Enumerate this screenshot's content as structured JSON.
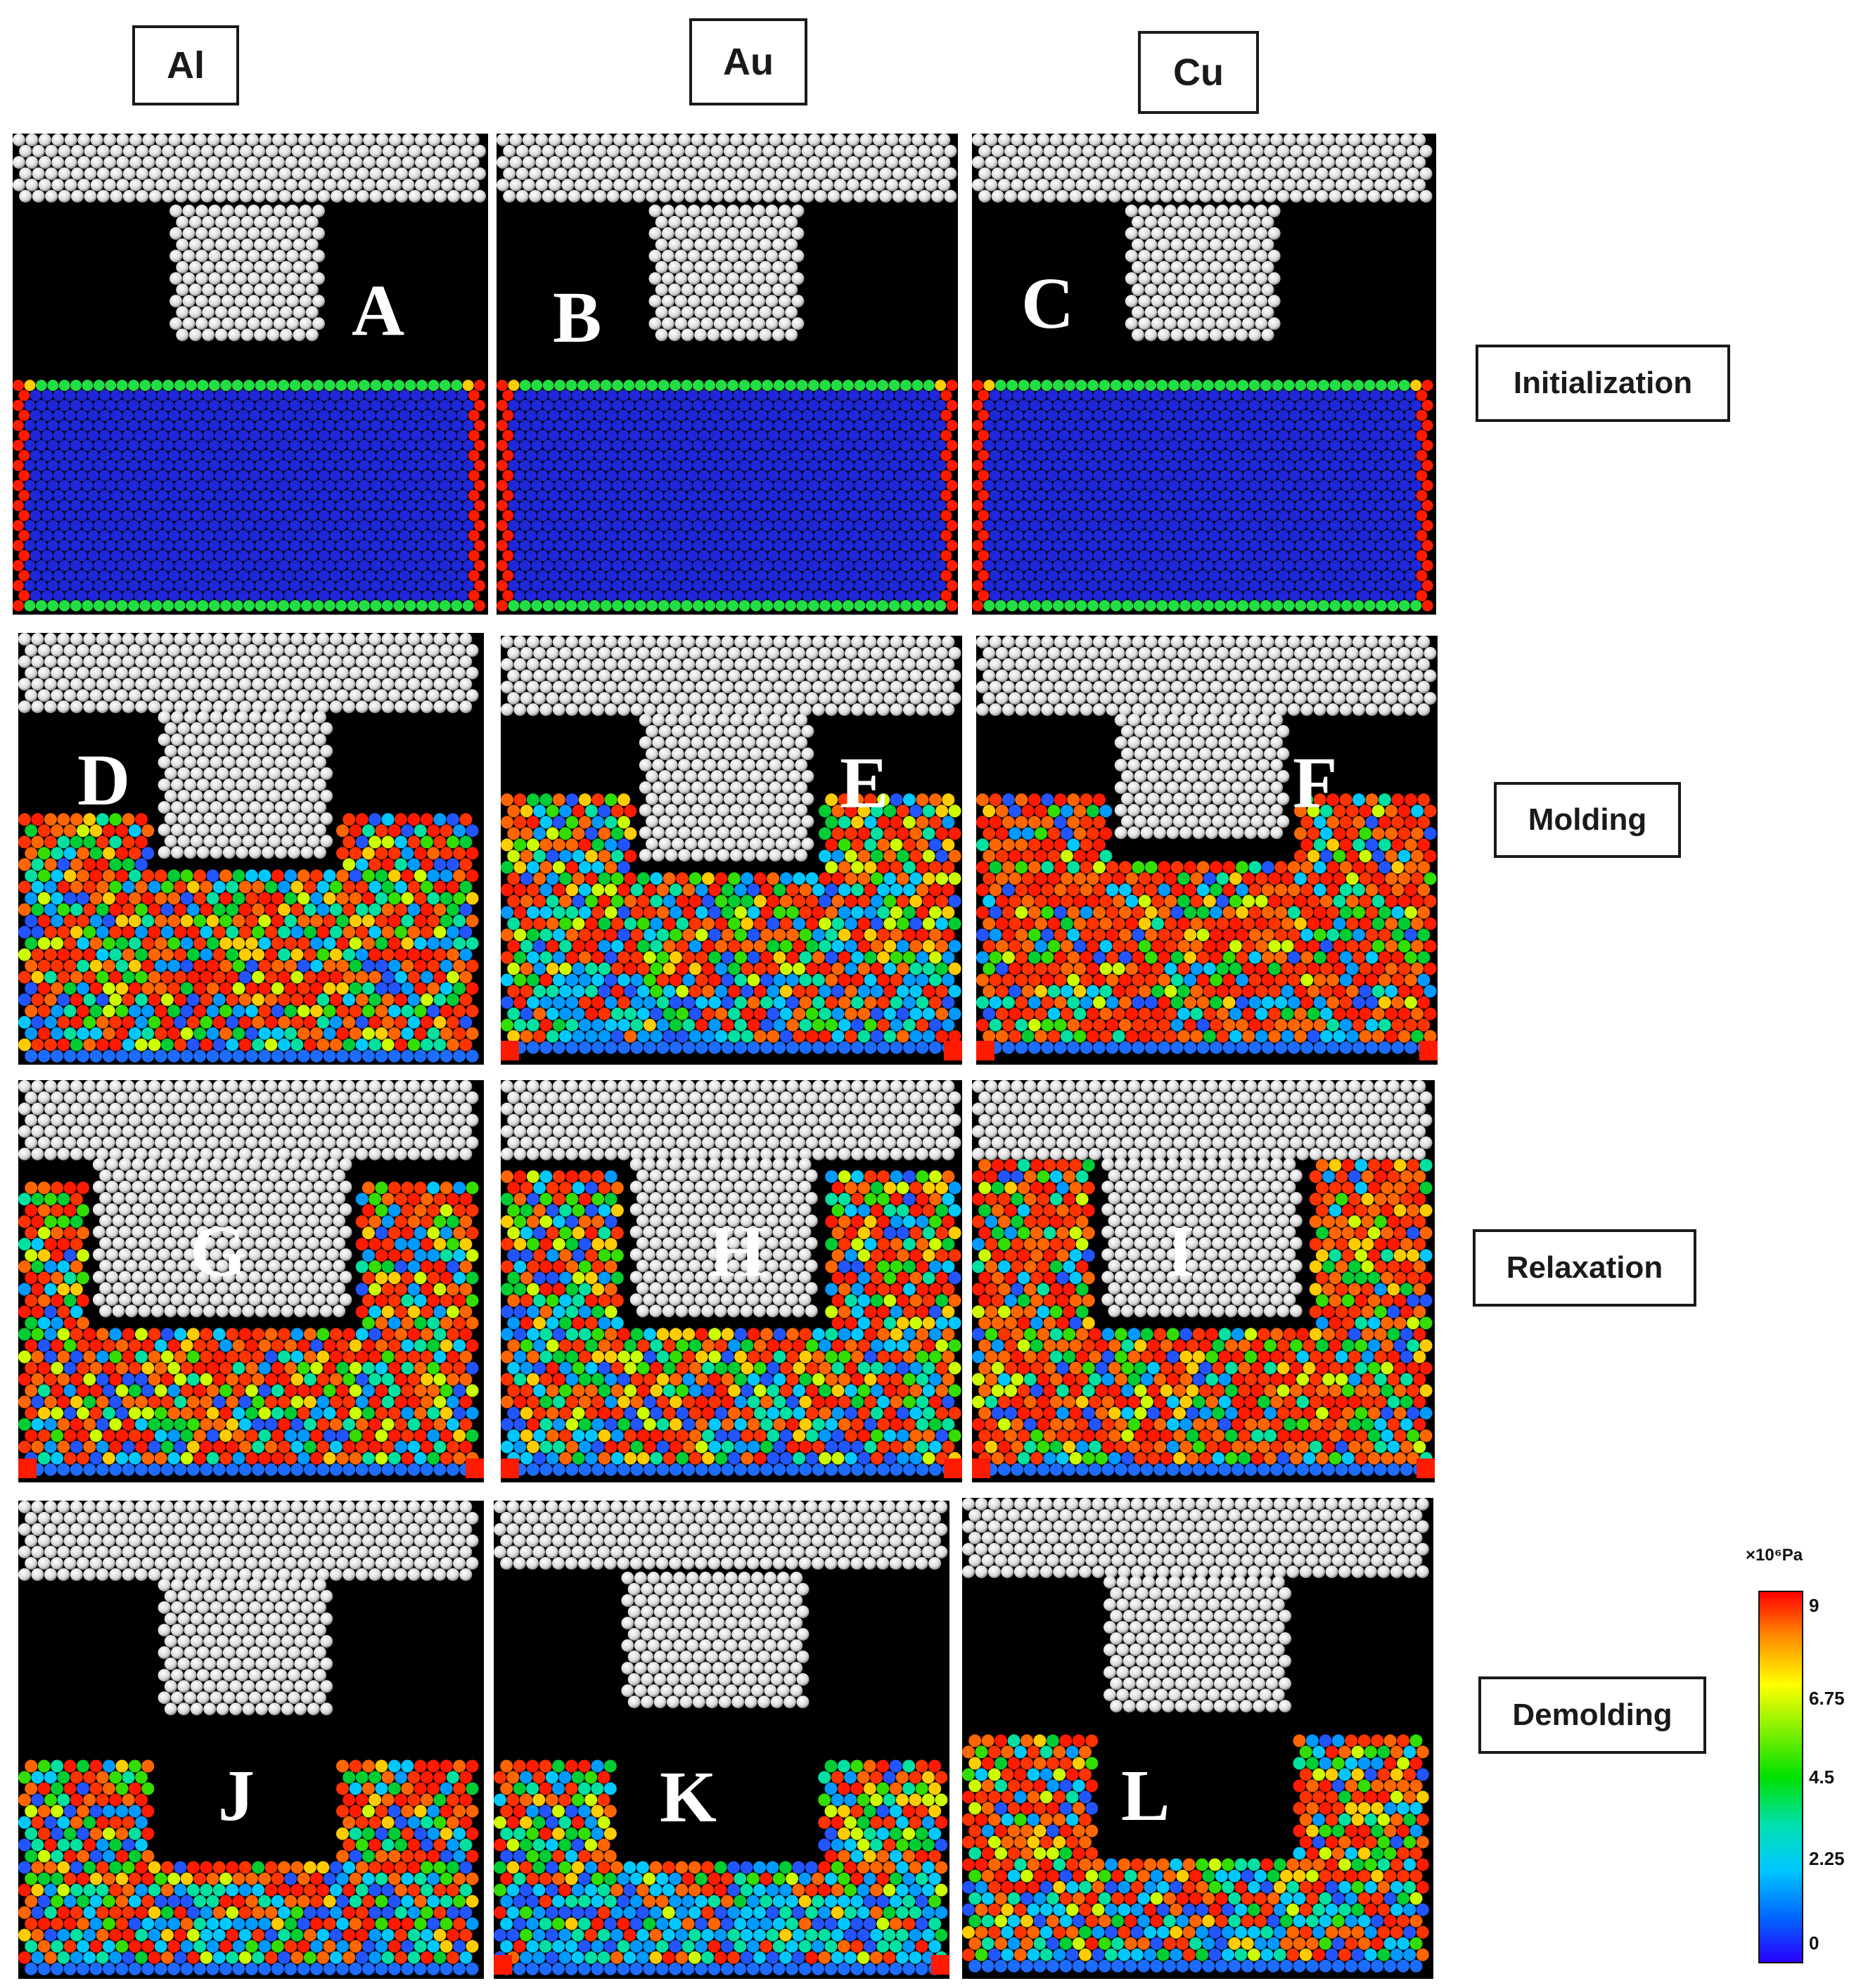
{
  "columns": [
    "Al",
    "Au",
    "Cu"
  ],
  "rows": [
    "Initialization",
    "Molding",
    "Relaxation",
    "Demolding"
  ],
  "panel_letters": [
    "A",
    "B",
    "C",
    "D",
    "E",
    "F",
    "G",
    "H",
    "I",
    "J",
    "K",
    "L"
  ],
  "colorbar": {
    "unit": "×10⁶Pa",
    "ticks": [
      "9",
      "6.75",
      "4.5",
      "2.25",
      "0"
    ]
  }
}
